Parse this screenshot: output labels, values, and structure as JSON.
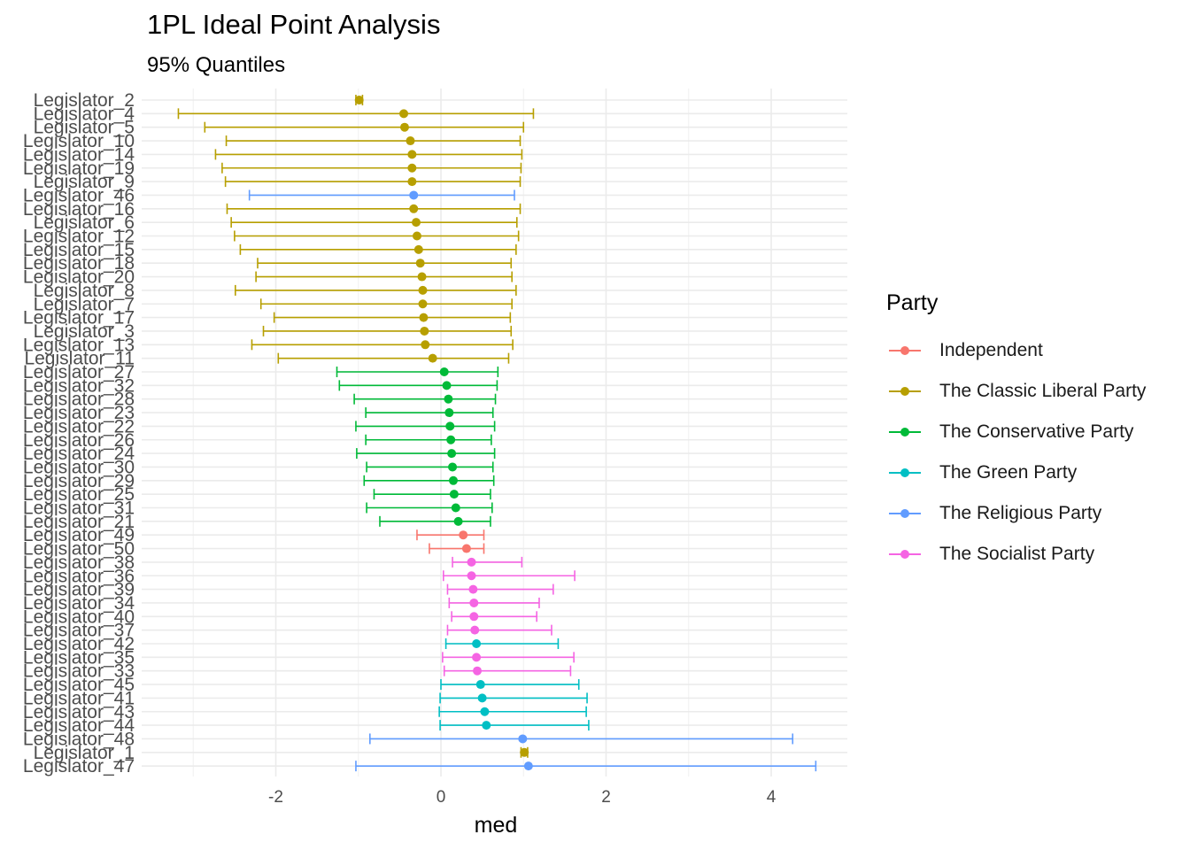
{
  "title": "1PL Ideal Point Analysis",
  "subtitle": "95% Quantiles",
  "legend_title": "Party",
  "colors": {
    "Independent": "#F8766D",
    "The Classic Liberal Party": "#B79F00",
    "The Conservative Party": "#00BA38",
    "The Green Party": "#00BFC4",
    "The Religious Party": "#619CFF",
    "The Socialist Party": "#F564E3"
  },
  "chart_data": {
    "type": "scatter",
    "title": "1PL Ideal Point Analysis",
    "subtitle": "95% Quantiles",
    "xlabel": "med",
    "ylabel": "",
    "xlim": [
      -3.6,
      4.9
    ],
    "x_ticks": [
      "-2",
      "0",
      "2",
      "4"
    ],
    "grid": true,
    "legend_position": "right",
    "legend_entries": [
      "Independent",
      "The Classic Liberal Party",
      "The Conservative Party",
      "The Green Party",
      "The Religious Party",
      "The Socialist Party"
    ],
    "points": [
      {
        "label": "Legislator_2",
        "party": "The Classic Liberal Party",
        "med": -0.99,
        "low": -1.03,
        "high": -0.95
      },
      {
        "label": "Legislator_4",
        "party": "The Classic Liberal Party",
        "med": -0.45,
        "low": -3.18,
        "high": 1.12
      },
      {
        "label": "Legislator_5",
        "party": "The Classic Liberal Party",
        "med": -0.44,
        "low": -2.86,
        "high": 1.0
      },
      {
        "label": "Legislator_10",
        "party": "The Classic Liberal Party",
        "med": -0.37,
        "low": -2.6,
        "high": 0.96
      },
      {
        "label": "Legislator_14",
        "party": "The Classic Liberal Party",
        "med": -0.35,
        "low": -2.73,
        "high": 0.98
      },
      {
        "label": "Legislator_19",
        "party": "The Classic Liberal Party",
        "med": -0.35,
        "low": -2.65,
        "high": 0.97
      },
      {
        "label": "Legislator_9",
        "party": "The Classic Liberal Party",
        "med": -0.35,
        "low": -2.61,
        "high": 0.96
      },
      {
        "label": "Legislator_46",
        "party": "The Religious Party",
        "med": -0.33,
        "low": -2.32,
        "high": 0.89
      },
      {
        "label": "Legislator_16",
        "party": "The Classic Liberal Party",
        "med": -0.33,
        "low": -2.59,
        "high": 0.96
      },
      {
        "label": "Legislator_6",
        "party": "The Classic Liberal Party",
        "med": -0.3,
        "low": -2.54,
        "high": 0.92
      },
      {
        "label": "Legislator_12",
        "party": "The Classic Liberal Party",
        "med": -0.29,
        "low": -2.5,
        "high": 0.94
      },
      {
        "label": "Legislator_15",
        "party": "The Classic Liberal Party",
        "med": -0.27,
        "low": -2.43,
        "high": 0.91
      },
      {
        "label": "Legislator_18",
        "party": "The Classic Liberal Party",
        "med": -0.25,
        "low": -2.22,
        "high": 0.85
      },
      {
        "label": "Legislator_20",
        "party": "The Classic Liberal Party",
        "med": -0.23,
        "low": -2.24,
        "high": 0.86
      },
      {
        "label": "Legislator_8",
        "party": "The Classic Liberal Party",
        "med": -0.22,
        "low": -2.49,
        "high": 0.91
      },
      {
        "label": "Legislator_7",
        "party": "The Classic Liberal Party",
        "med": -0.22,
        "low": -2.18,
        "high": 0.86
      },
      {
        "label": "Legislator_17",
        "party": "The Classic Liberal Party",
        "med": -0.21,
        "low": -2.02,
        "high": 0.84
      },
      {
        "label": "Legislator_3",
        "party": "The Classic Liberal Party",
        "med": -0.2,
        "low": -2.15,
        "high": 0.85
      },
      {
        "label": "Legislator_13",
        "party": "The Classic Liberal Party",
        "med": -0.19,
        "low": -2.29,
        "high": 0.87
      },
      {
        "label": "Legislator_11",
        "party": "The Classic Liberal Party",
        "med": -0.1,
        "low": -1.97,
        "high": 0.82
      },
      {
        "label": "Legislator_27",
        "party": "The Conservative Party",
        "med": 0.04,
        "low": -1.26,
        "high": 0.69
      },
      {
        "label": "Legislator_32",
        "party": "The Conservative Party",
        "med": 0.07,
        "low": -1.23,
        "high": 0.68
      },
      {
        "label": "Legislator_28",
        "party": "The Conservative Party",
        "med": 0.09,
        "low": -1.05,
        "high": 0.66
      },
      {
        "label": "Legislator_23",
        "party": "The Conservative Party",
        "med": 0.1,
        "low": -0.91,
        "high": 0.63
      },
      {
        "label": "Legislator_22",
        "party": "The Conservative Party",
        "med": 0.11,
        "low": -1.03,
        "high": 0.65
      },
      {
        "label": "Legislator_26",
        "party": "The Conservative Party",
        "med": 0.12,
        "low": -0.91,
        "high": 0.61
      },
      {
        "label": "Legislator_24",
        "party": "The Conservative Party",
        "med": 0.13,
        "low": -1.02,
        "high": 0.65
      },
      {
        "label": "Legislator_30",
        "party": "The Conservative Party",
        "med": 0.14,
        "low": -0.9,
        "high": 0.63
      },
      {
        "label": "Legislator_29",
        "party": "The Conservative Party",
        "med": 0.15,
        "low": -0.93,
        "high": 0.64
      },
      {
        "label": "Legislator_25",
        "party": "The Conservative Party",
        "med": 0.16,
        "low": -0.81,
        "high": 0.6
      },
      {
        "label": "Legislator_31",
        "party": "The Conservative Party",
        "med": 0.18,
        "low": -0.9,
        "high": 0.62
      },
      {
        "label": "Legislator_21",
        "party": "The Conservative Party",
        "med": 0.21,
        "low": -0.74,
        "high": 0.6
      },
      {
        "label": "Legislator_49",
        "party": "Independent",
        "med": 0.27,
        "low": -0.29,
        "high": 0.52
      },
      {
        "label": "Legislator_50",
        "party": "Independent",
        "med": 0.31,
        "low": -0.14,
        "high": 0.52
      },
      {
        "label": "Legislator_38",
        "party": "The Socialist Party",
        "med": 0.37,
        "low": 0.14,
        "high": 0.98
      },
      {
        "label": "Legislator_36",
        "party": "The Socialist Party",
        "med": 0.37,
        "low": 0.03,
        "high": 1.62
      },
      {
        "label": "Legislator_39",
        "party": "The Socialist Party",
        "med": 0.39,
        "low": 0.08,
        "high": 1.36
      },
      {
        "label": "Legislator_34",
        "party": "The Socialist Party",
        "med": 0.4,
        "low": 0.1,
        "high": 1.19
      },
      {
        "label": "Legislator_40",
        "party": "The Socialist Party",
        "med": 0.4,
        "low": 0.13,
        "high": 1.16
      },
      {
        "label": "Legislator_37",
        "party": "The Socialist Party",
        "med": 0.41,
        "low": 0.08,
        "high": 1.34
      },
      {
        "label": "Legislator_42",
        "party": "The Green Party",
        "med": 0.43,
        "low": 0.06,
        "high": 1.42
      },
      {
        "label": "Legislator_35",
        "party": "The Socialist Party",
        "med": 0.43,
        "low": 0.02,
        "high": 1.61
      },
      {
        "label": "Legislator_33",
        "party": "The Socialist Party",
        "med": 0.44,
        "low": 0.04,
        "high": 1.57
      },
      {
        "label": "Legislator_45",
        "party": "The Green Party",
        "med": 0.48,
        "low": 0.0,
        "high": 1.67
      },
      {
        "label": "Legislator_41",
        "party": "The Green Party",
        "med": 0.5,
        "low": -0.01,
        "high": 1.77
      },
      {
        "label": "Legislator_43",
        "party": "The Green Party",
        "med": 0.53,
        "low": -0.02,
        "high": 1.76
      },
      {
        "label": "Legislator_44",
        "party": "The Green Party",
        "med": 0.55,
        "low": -0.01,
        "high": 1.79
      },
      {
        "label": "Legislator_48",
        "party": "The Religious Party",
        "med": 0.99,
        "low": -0.86,
        "high": 4.26
      },
      {
        "label": "Legislator_1",
        "party": "The Classic Liberal Party",
        "med": 1.01,
        "low": 0.97,
        "high": 1.05
      },
      {
        "label": "Legislator_47",
        "party": "The Religious Party",
        "med": 1.06,
        "low": -1.03,
        "high": 4.54
      }
    ]
  }
}
